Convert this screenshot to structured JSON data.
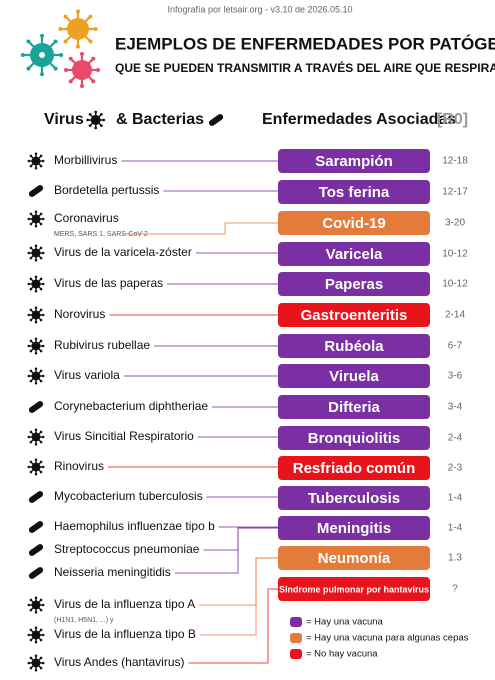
{
  "header": {
    "credit": "Infografía por letsair.org - v3.10 de 2026.05.10",
    "title": "EJEMPLOS DE ENFERMEDADES POR PATÓGENOS",
    "subtitle": "QUE SE PUEDEN TRANSMITIR A TRAVÉS DEL AIRE QUE RESPIRAMOS"
  },
  "columns": {
    "virus": "Virus",
    "bacteria": "& Bacterias",
    "diseases": "Enfermedades Asociadas",
    "r0": "[R0]"
  },
  "pathogens": [
    {
      "name": "Morbillivirus",
      "icon": "virus"
    },
    {
      "name": "Bordetella pertussis",
      "icon": "bacteria"
    },
    {
      "name": "Coronavirus",
      "icon": "virus",
      "note": "MERS, SARS 1, SARS-CoV-2"
    },
    {
      "name": "Virus de la varicela-zóster",
      "icon": "virus"
    },
    {
      "name": "Virus de las paperas",
      "icon": "virus"
    },
    {
      "name": "Norovirus",
      "icon": "virus"
    },
    {
      "name": "Rubivirus rubellae",
      "icon": "virus"
    },
    {
      "name": "Virus variola",
      "icon": "virus"
    },
    {
      "name": "Corynebacterium diphtheriae",
      "icon": "bacteria"
    },
    {
      "name": "Virus Sincitial Respiratorio",
      "icon": "virus"
    },
    {
      "name": "Rinovirus",
      "icon": "virus"
    },
    {
      "name": "Mycobacterium tuberculosis",
      "icon": "bacteria"
    },
    {
      "name": "Haemophilus influenzae tipo b",
      "icon": "bacteria"
    },
    {
      "name": "Streptococcus pneumoniae",
      "icon": "bacteria"
    },
    {
      "name": "Neisseria meningitidis",
      "icon": "bacteria"
    },
    {
      "name": "Virus de la influenza tipo A",
      "icon": "virus",
      "note": "(H1N1, H5N1, ...) y"
    },
    {
      "name": "Virus de la influenza tipo B",
      "icon": "virus"
    },
    {
      "name": "Virus Andes (hantavirus)",
      "icon": "virus"
    }
  ],
  "diseases": [
    {
      "name": "Sarampión",
      "color": "#7a2fa3",
      "r0": "12-18"
    },
    {
      "name": "Tos ferina",
      "color": "#7a2fa3",
      "r0": "12-17"
    },
    {
      "name": "Covid-19",
      "color": "#e57b3b",
      "r0": "3-20"
    },
    {
      "name": "Varicela",
      "color": "#7a2fa3",
      "r0": "10-12"
    },
    {
      "name": "Paperas",
      "color": "#7a2fa3",
      "r0": "10-12"
    },
    {
      "name": "Gastroenteritis",
      "color": "#e8131b",
      "r0": "2-14"
    },
    {
      "name": "Rubéola",
      "color": "#7a2fa3",
      "r0": "6-7"
    },
    {
      "name": "Viruela",
      "color": "#7a2fa3",
      "r0": "3-6"
    },
    {
      "name": "Difteria",
      "color": "#7a2fa3",
      "r0": "3-4"
    },
    {
      "name": "Bronquiolitis",
      "color": "#7a2fa3",
      "r0": "2-4"
    },
    {
      "name": "Resfriado común",
      "color": "#e8131b",
      "r0": "2-3"
    },
    {
      "name": "Tuberculosis",
      "color": "#7a2fa3",
      "r0": "1-4"
    },
    {
      "name": "Meningitis",
      "color": "#7a2fa3",
      "r0": "1-4"
    },
    {
      "name": "Neumonía",
      "color": "#e57b3b",
      "r0": "1.3"
    },
    {
      "name": "Síndrome pulmonar por hantavirus",
      "color": "#e8131b",
      "r0": "?"
    }
  ],
  "legend": [
    {
      "label": "= Hay una vacuna",
      "color": "#7a2fa3"
    },
    {
      "label": "= Hay una vacuna para algunas cepas",
      "color": "#e57b3b"
    },
    {
      "label": "= No hay vacuna",
      "color": "#e8131b"
    }
  ]
}
